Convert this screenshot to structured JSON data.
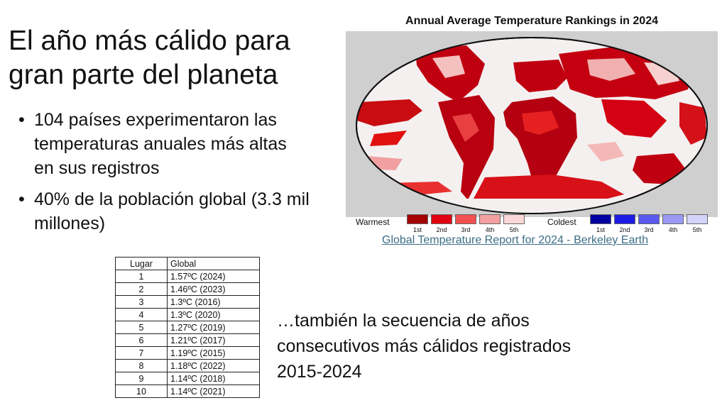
{
  "slide": {
    "title": "El año más cálido para gran parte del planeta",
    "bullets": [
      "104 países experimentaron las temperaturas anuales más altas en sus registros",
      "40% de la población global (3.3 mil millones)"
    ],
    "bullet_glyph": "•",
    "note": "…también la secuencia de años consecutivos más cálidos registrados 2015-2024"
  },
  "map": {
    "title": "Annual Average Temperature Rankings in 2024",
    "legend": {
      "warm_label": "Warmest",
      "cold_label": "Coldest",
      "warm_ranks": [
        "1st",
        "2nd",
        "3rd",
        "4th",
        "5th"
      ],
      "cold_ranks": [
        "1st",
        "2nd",
        "3rd",
        "4th",
        "5th"
      ],
      "warm_colors": [
        "#a50000",
        "#e00010",
        "#f25050",
        "#f5a0a0",
        "#fad8d8"
      ],
      "cold_colors": [
        "#0000a0",
        "#1c1ce6",
        "#5a5af0",
        "#9a9af5",
        "#d4d4fa"
      ]
    },
    "source_link": "Global Temperature Report for 2024 - Berkeley Earth"
  },
  "table": {
    "headers": [
      "Lugar",
      "Global"
    ],
    "rows": [
      [
        "1",
        "1.57ºC (2024)"
      ],
      [
        "2",
        "1.46ºC (2023)"
      ],
      [
        "3",
        "1.3ºC (2016)"
      ],
      [
        "4",
        "1.3ºC (2020)"
      ],
      [
        "5",
        "1.27ºC (2019)"
      ],
      [
        "6",
        "1.21ºC (2017)"
      ],
      [
        "7",
        "1.19ºC (2015)"
      ],
      [
        "8",
        "1.18ºC (2022)"
      ],
      [
        "9",
        "1.14ºC (2018)"
      ],
      [
        "10",
        "1.14ºC (2021)"
      ]
    ]
  }
}
